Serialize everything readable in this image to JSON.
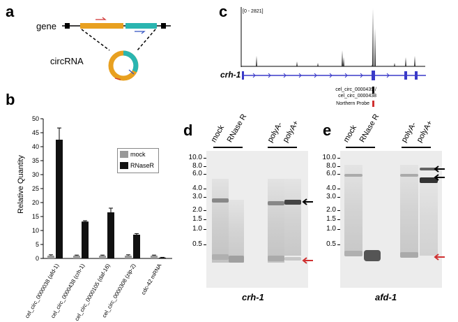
{
  "panels": {
    "a": {
      "letter": "a",
      "gene_label": "gene",
      "circ_label": "circRNA",
      "colors": {
        "exon1": "#e8a020",
        "exon2": "#2ab5b0",
        "arrow_red": "#d03030",
        "arrow_blue": "#3050c0"
      }
    },
    "b": {
      "letter": "b",
      "ylabel": "Relative Quantity",
      "legend": [
        "mock",
        "RNaseR"
      ],
      "colors": {
        "mock": "#999999",
        "rnaser": "#111111"
      }
    },
    "c": {
      "letter": "c",
      "range_label": "[0 - 2821]",
      "gene_name": "crh-1",
      "circ_ids": "cel_circ_0000439 / cel_circ_0000438",
      "probe_label": "Northern Probe",
      "colors": {
        "track": "#3a3ac8",
        "probe": "#d03030"
      }
    },
    "d": {
      "letter": "d",
      "lanes": [
        "mock",
        "RNase R",
        "polyA-",
        "polyA+"
      ],
      "gene": "crh-1",
      "sizes": [
        "10.0",
        "8.0",
        "6.0",
        "4.0",
        "3.0",
        "2.0",
        "1.5",
        "1.0",
        "0.5"
      ]
    },
    "e": {
      "letter": "e",
      "lanes": [
        "mock",
        "RNase R",
        "polyA-",
        "polyA+"
      ],
      "gene": "afd-1",
      "sizes": [
        "10.0",
        "8.0",
        "6.0",
        "4.0",
        "3.0",
        "2.0",
        "1.5",
        "1.0",
        "0.5"
      ]
    }
  },
  "chart_data": {
    "type": "bar",
    "categories": [
      "cel_circ_0000038 (afd-1)",
      "cel_circ_0000438 (crh-1)",
      "cel_circ_0000105 (daf-16)",
      "cel_circ_0000308 (zip-2)",
      "cdc-42 mRNA"
    ],
    "series": [
      {
        "name": "mock",
        "values": [
          1,
          1,
          1,
          1,
          1
        ]
      },
      {
        "name": "RNaseR",
        "values": [
          42.5,
          13.2,
          16.5,
          8.5,
          0.3
        ]
      }
    ],
    "errors": {
      "mock": [
        0.3,
        0.2,
        0.2,
        0.3,
        0.2
      ],
      "RNaseR": [
        4.2,
        0.3,
        1.5,
        0.4,
        0.1
      ]
    },
    "yticks": [
      "0",
      "5",
      "10",
      "15",
      "20",
      "25",
      "30",
      "35",
      "40",
      "45",
      "50"
    ],
    "xlabel": "",
    "ylabel": "Relative Quantity",
    "ylim": [
      0,
      50
    ],
    "legend_position": "top-right"
  }
}
